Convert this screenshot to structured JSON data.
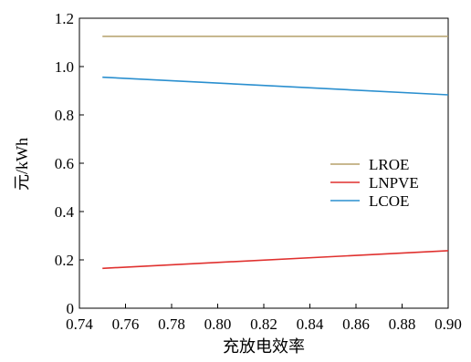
{
  "chart_data": {
    "type": "line",
    "xlabel": "充放电效率",
    "ylabel": "元/kWh",
    "xlim": [
      0.74,
      0.9
    ],
    "ylim": [
      0,
      1.2
    ],
    "x_ticks": [
      "0.74",
      "0.76",
      "0.78",
      "0.80",
      "0.82",
      "0.84",
      "0.86",
      "0.88",
      "0.90"
    ],
    "y_ticks": [
      "0",
      "0.2",
      "0.4",
      "0.6",
      "0.8",
      "1.0",
      "1.2"
    ],
    "grid": false,
    "legend_position": "right-center",
    "series": [
      {
        "name": "LROE",
        "color": "#b5a06a",
        "x": [
          0.75,
          0.9
        ],
        "y": [
          1.125,
          1.125
        ]
      },
      {
        "name": "LNPVE",
        "color": "#e0312f",
        "x": [
          0.75,
          0.9
        ],
        "y": [
          0.165,
          0.238
        ]
      },
      {
        "name": "LCOE",
        "color": "#2a8fcf",
        "x": [
          0.75,
          0.9
        ],
        "y": [
          0.956,
          0.883
        ]
      }
    ]
  }
}
